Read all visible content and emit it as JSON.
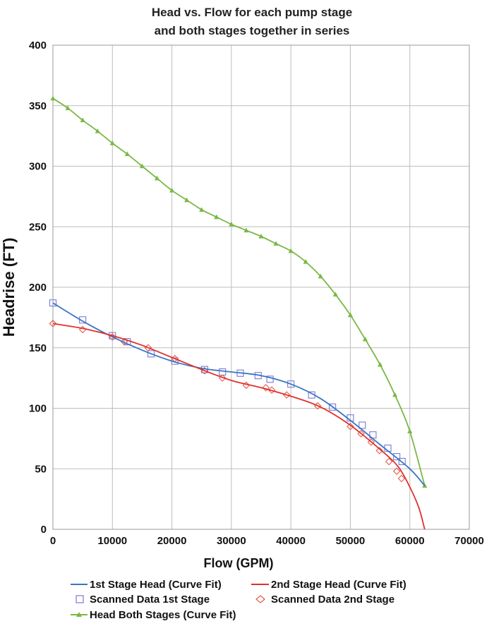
{
  "chart_data": {
    "type": "line",
    "title_lines": [
      "Head vs. Flow for each pump stage",
      "and both stages together in series"
    ],
    "xlabel": "Flow (GPM)",
    "ylabel": "Headrise (FT)",
    "xlim": [
      0,
      70000
    ],
    "ylim": [
      0,
      400
    ],
    "x_ticks": [
      0,
      10000,
      20000,
      30000,
      40000,
      50000,
      60000,
      70000
    ],
    "y_ticks": [
      0,
      50,
      100,
      150,
      200,
      250,
      300,
      350,
      400
    ],
    "grid": true,
    "legend_position": "bottom",
    "series": [
      {
        "name": "1st Stage Head (Curve Fit)",
        "kind": "line",
        "color": "#3a75c4",
        "points": [
          [
            0,
            187
          ],
          [
            5000,
            172
          ],
          [
            10000,
            159
          ],
          [
            15000,
            148
          ],
          [
            20000,
            139
          ],
          [
            25000,
            133
          ],
          [
            30000,
            130
          ],
          [
            35000,
            127
          ],
          [
            40000,
            120
          ],
          [
            45000,
            108
          ],
          [
            50000,
            90
          ],
          [
            55000,
            70
          ],
          [
            60000,
            50
          ],
          [
            62500,
            36
          ]
        ]
      },
      {
        "name": "2nd Stage Head (Curve Fit)",
        "kind": "line",
        "color": "#e0312c",
        "points": [
          [
            0,
            170
          ],
          [
            5000,
            166
          ],
          [
            10000,
            160
          ],
          [
            15000,
            152
          ],
          [
            20000,
            142
          ],
          [
            25000,
            132
          ],
          [
            30000,
            123
          ],
          [
            35000,
            117
          ],
          [
            40000,
            110
          ],
          [
            45000,
            101
          ],
          [
            50000,
            86
          ],
          [
            55000,
            66
          ],
          [
            58000,
            52
          ],
          [
            60000,
            35
          ],
          [
            61500,
            18
          ],
          [
            62500,
            0
          ]
        ]
      },
      {
        "name": "Scanned Data 1st Stage",
        "kind": "marker",
        "marker": "square",
        "color": "#7a7ad6",
        "points": [
          [
            0,
            187
          ],
          [
            5000,
            173
          ],
          [
            10000,
            160
          ],
          [
            12500,
            155
          ],
          [
            16500,
            145
          ],
          [
            20500,
            139
          ],
          [
            25500,
            132
          ],
          [
            28500,
            130
          ],
          [
            31500,
            129
          ],
          [
            34500,
            127
          ],
          [
            36500,
            124
          ],
          [
            40000,
            120
          ],
          [
            43500,
            111
          ],
          [
            47000,
            101
          ],
          [
            50000,
            92
          ],
          [
            52000,
            86
          ],
          [
            53800,
            78
          ],
          [
            56300,
            67
          ],
          [
            57800,
            60
          ],
          [
            58700,
            56
          ]
        ]
      },
      {
        "name": "Scanned Data 2nd Stage",
        "kind": "marker",
        "marker": "diamond",
        "color": "#e65a4e",
        "points": [
          [
            0,
            170
          ],
          [
            5000,
            165
          ],
          [
            10000,
            159
          ],
          [
            12000,
            155
          ],
          [
            16000,
            150
          ],
          [
            20500,
            141
          ],
          [
            25500,
            131
          ],
          [
            28500,
            125
          ],
          [
            32500,
            119
          ],
          [
            35800,
            117
          ],
          [
            36800,
            115
          ],
          [
            39300,
            111
          ],
          [
            44500,
            102
          ],
          [
            50000,
            85
          ],
          [
            51800,
            79
          ],
          [
            53500,
            72
          ],
          [
            54900,
            65
          ],
          [
            56500,
            56
          ],
          [
            57800,
            48
          ],
          [
            58600,
            42
          ]
        ]
      },
      {
        "name": "Head Both Stages (Curve Fit)",
        "kind": "line_marker",
        "marker": "triangle",
        "color": "#7ab845",
        "points": [
          [
            0,
            356
          ],
          [
            2500,
            348
          ],
          [
            5000,
            338
          ],
          [
            7500,
            329
          ],
          [
            10000,
            319
          ],
          [
            12500,
            310
          ],
          [
            15000,
            300
          ],
          [
            17500,
            290
          ],
          [
            20000,
            280
          ],
          [
            22500,
            272
          ],
          [
            25000,
            264
          ],
          [
            27500,
            258
          ],
          [
            30000,
            252
          ],
          [
            32500,
            247
          ],
          [
            35000,
            242
          ],
          [
            37500,
            236
          ],
          [
            40000,
            230
          ],
          [
            42500,
            221
          ],
          [
            45000,
            209
          ],
          [
            47500,
            194
          ],
          [
            50000,
            177
          ],
          [
            52500,
            157
          ],
          [
            55000,
            136
          ],
          [
            57500,
            111
          ],
          [
            60000,
            81
          ],
          [
            62500,
            36
          ]
        ]
      }
    ]
  }
}
